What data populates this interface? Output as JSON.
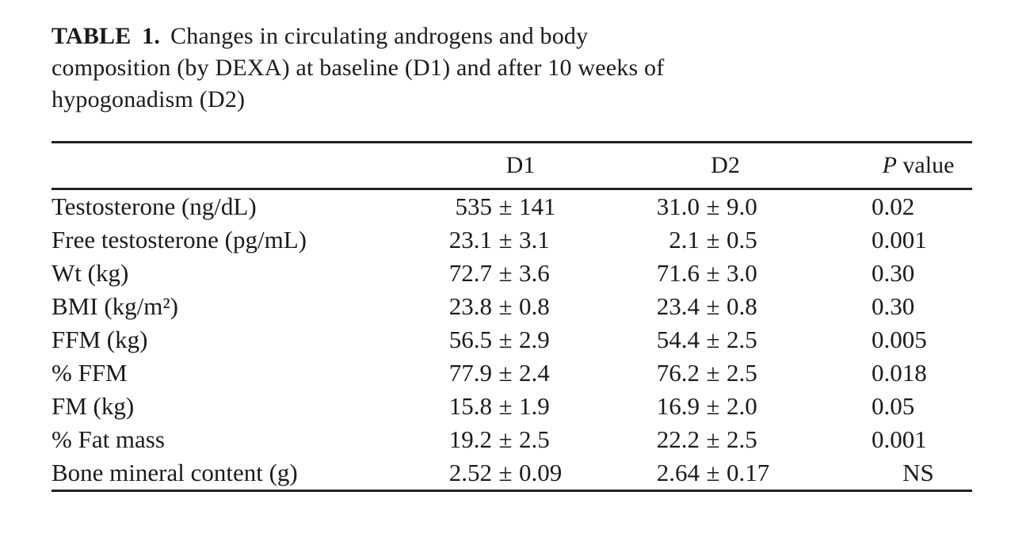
{
  "caption": {
    "tag": "TABLE 1.",
    "line1": "Changes in circulating androgens and body",
    "line2": "composition (by DEXA) at baseline (D1) and after 10 weeks of",
    "line3": "hypogonadism (D2)"
  },
  "table": {
    "pm": "±",
    "ns_label": "NS",
    "columns": {
      "d1": "D1",
      "d2": "D2",
      "p_italic": "P",
      "p_rest": " value"
    },
    "rows": [
      {
        "label": "Testosterone (ng/dL)",
        "d1": [
          "535",
          "141"
        ],
        "d2": [
          "31.0",
          "9.0"
        ],
        "p": "0.02"
      },
      {
        "label": "Free testosterone (pg/mL)",
        "d1": [
          "23.1",
          "3.1"
        ],
        "d2": [
          "2.1",
          "0.5"
        ],
        "p": "0.001"
      },
      {
        "label": "Wt (kg)",
        "d1": [
          "72.7",
          "3.6"
        ],
        "d2": [
          "71.6",
          "3.0"
        ],
        "p": "0.30"
      },
      {
        "label": "BMI (kg/m²)",
        "d1": [
          "23.8",
          "0.8"
        ],
        "d2": [
          "23.4",
          "0.8"
        ],
        "p": "0.30"
      },
      {
        "label": "FFM (kg)",
        "d1": [
          "56.5",
          "2.9"
        ],
        "d2": [
          "54.4",
          "2.5"
        ],
        "p": "0.005"
      },
      {
        "label": "% FFM",
        "d1": [
          "77.9",
          "2.4"
        ],
        "d2": [
          "76.2",
          "2.5"
        ],
        "p": "0.018"
      },
      {
        "label": "FM (kg)",
        "d1": [
          "15.8",
          "1.9"
        ],
        "d2": [
          "16.9",
          "2.0"
        ],
        "p": "0.05"
      },
      {
        "label": "% Fat mass",
        "d1": [
          "19.2",
          "2.5"
        ],
        "d2": [
          "22.2",
          "2.5"
        ],
        "p": "0.001"
      },
      {
        "label": "Bone mineral content (g)",
        "d1": [
          "2.52",
          "0.09"
        ],
        "d2": [
          "2.64",
          "0.17"
        ],
        "p": "NS"
      }
    ]
  },
  "colors": {
    "background": "#ffffff",
    "text": "#1b1b1b",
    "rule": "#212121"
  }
}
